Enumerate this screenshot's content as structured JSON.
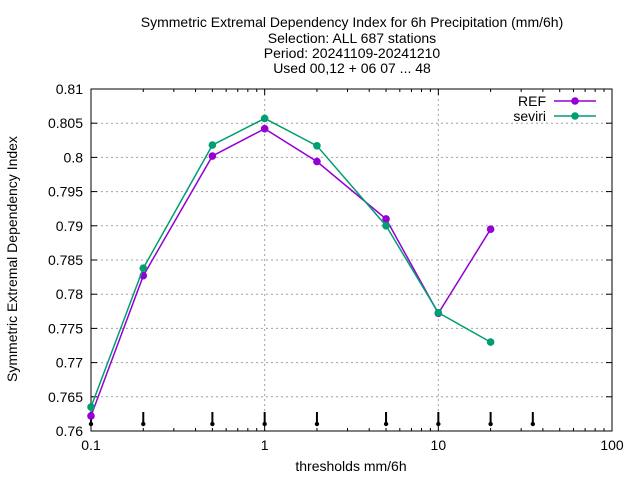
{
  "chart_data": {
    "type": "line",
    "title_lines": [
      "Symmetric Extremal Dependency Index  for 6h Precipitation (mm/6h)",
      "Selection: ALL     687 stations",
      "Period: 20241109-20241210",
      "Used 00,12 + 06 07 ... 48"
    ],
    "xlabel": "thresholds mm/6h",
    "ylabel": "Symmetric Extremal Dependency Index",
    "x_scale": "log",
    "xlim": [
      0.1,
      100
    ],
    "ylim": [
      0.76,
      0.81
    ],
    "x_ticks": [
      0.1,
      1,
      10,
      100
    ],
    "x_tick_labels": [
      "0.1",
      "1",
      "10",
      "100"
    ],
    "y_ticks": [
      0.76,
      0.765,
      0.77,
      0.775,
      0.78,
      0.785,
      0.79,
      0.795,
      0.8,
      0.805,
      0.81
    ],
    "y_tick_labels": [
      "0.76",
      "0.765",
      "0.77",
      "0.775",
      "0.78",
      "0.785",
      "0.79",
      "0.795",
      "0.8",
      "0.805",
      "0.81"
    ],
    "grid": true,
    "legend_position": "top-right",
    "threshold_markers": [
      0.1,
      0.2,
      0.5,
      1,
      2,
      5,
      10,
      20,
      35
    ],
    "series": [
      {
        "name": "REF",
        "color": "#9400d3",
        "x": [
          0.1,
          0.2,
          0.5,
          1,
          2,
          5,
          10,
          20
        ],
        "y": [
          0.7622,
          0.7827,
          0.8002,
          0.8042,
          0.7994,
          0.791,
          0.7772,
          0.7895
        ]
      },
      {
        "name": "seviri",
        "color": "#009e73",
        "x": [
          0.1,
          0.2,
          0.5,
          1,
          2,
          5,
          10,
          20
        ],
        "y": [
          0.7635,
          0.7838,
          0.8018,
          0.8057,
          0.8017,
          0.79,
          0.7773,
          0.773
        ]
      }
    ]
  }
}
